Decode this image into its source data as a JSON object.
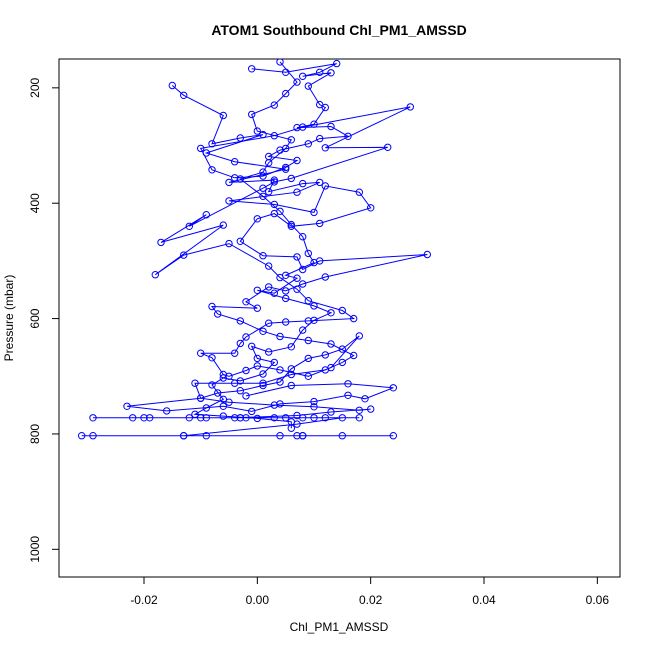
{
  "chart_data": {
    "type": "line",
    "title": "ATOM1 Southbound Chl_PM1_AMSSD",
    "xlabel": "Chl_PM1_AMSSD",
    "ylabel": "Pressure (mbar)",
    "xlim": [
      -0.035,
      0.064
    ],
    "ylim": [
      1048,
      150
    ],
    "y_inverted": true,
    "x_ticks": [
      -0.02,
      0.0,
      0.02,
      0.04,
      0.06
    ],
    "x_tick_labels": [
      "-0.02",
      "0.00",
      "0.02",
      "0.04",
      "0.06"
    ],
    "y_ticks": [
      200,
      400,
      600,
      800,
      1000
    ],
    "y_tick_labels": [
      "200",
      "400",
      "600",
      "800",
      "1000"
    ],
    "grid": false,
    "line_color": "#0000ff",
    "marker": "open-circle",
    "series": [
      {
        "points": [
          [
            -0.015,
            196
          ],
          [
            -0.013,
            213
          ],
          [
            -0.006,
            248
          ],
          [
            -0.008,
            297
          ],
          [
            -0.003,
            287
          ],
          [
            0.001,
            281
          ],
          [
            -0.009,
            313
          ],
          [
            -0.004,
            328
          ],
          [
            0.005,
            341
          ],
          [
            -0.005,
            364
          ],
          [
            0.003,
            360
          ],
          [
            0.002,
            380
          ],
          [
            0.008,
            366
          ],
          [
            0.011,
            364
          ],
          [
            0.007,
            381
          ],
          [
            -0.005,
            396
          ],
          [
            0.003,
            402
          ],
          [
            0.01,
            416
          ],
          [
            0.012,
            370
          ],
          [
            0.018,
            381
          ],
          [
            0.02,
            408
          ],
          [
            0.011,
            435
          ],
          [
            0.006,
            440
          ],
          [
            0.003,
            418
          ],
          [
            0.0,
            427
          ],
          [
            -0.003,
            466
          ],
          [
            0.001,
            491
          ],
          [
            0.007,
            493
          ],
          [
            0.008,
            515
          ],
          [
            0.011,
            500
          ],
          [
            0.03,
            489
          ],
          [
            0.012,
            528
          ],
          [
            0.008,
            540
          ],
          [
            0.005,
            552
          ],
          [
            0.002,
            545
          ],
          [
            -0.002,
            571
          ],
          [
            0.0,
            582
          ],
          [
            -0.008,
            579
          ],
          [
            -0.007,
            592
          ],
          [
            -0.003,
            604
          ],
          [
            0.001,
            622
          ],
          [
            0.004,
            631
          ],
          [
            0.009,
            638
          ],
          [
            0.013,
            644
          ],
          [
            0.017,
            664
          ],
          [
            0.015,
            676
          ],
          [
            0.012,
            689
          ],
          [
            0.006,
            697
          ],
          [
            0.001,
            712
          ],
          [
            -0.004,
            712
          ],
          [
            -0.011,
            712
          ],
          [
            -0.01,
            738
          ],
          [
            -0.005,
            745
          ],
          [
            0.003,
            750
          ],
          [
            0.01,
            753
          ],
          [
            0.018,
            759
          ],
          [
            0.02,
            757
          ],
          [
            0.013,
            762
          ],
          [
            0.007,
            768
          ],
          [
            -0.004,
            772
          ],
          [
            -0.012,
            772
          ],
          [
            -0.019,
            772
          ],
          [
            -0.022,
            772
          ],
          [
            -0.029,
            772
          ],
          [
            -0.02,
            772
          ],
          [
            -0.01,
            772
          ],
          [
            -0.003,
            772
          ],
          [
            0.005,
            772
          ],
          [
            0.012,
            772
          ],
          [
            0.018,
            772
          ],
          [
            0.01,
            772
          ],
          [
            0.003,
            772
          ],
          [
            -0.003,
            772
          ],
          [
            -0.009,
            772
          ],
          [
            -0.002,
            772
          ],
          [
            0.008,
            772
          ],
          [
            0.015,
            772
          ],
          [
            0.007,
            783
          ],
          [
            -0.013,
            803
          ],
          [
            -0.031,
            803
          ],
          [
            -0.029,
            803
          ],
          [
            -0.013,
            803
          ],
          [
            -0.009,
            803
          ],
          [
            0.004,
            803
          ],
          [
            0.008,
            803
          ],
          [
            0.007,
            803
          ],
          [
            0.008,
            803
          ],
          [
            0.015,
            803
          ],
          [
            0.024,
            803
          ]
        ]
      },
      {
        "points": [
          [
            -0.001,
            167
          ],
          [
            0.005,
            173
          ],
          [
            0.014,
            158
          ],
          [
            0.011,
            173
          ],
          [
            0.008,
            180
          ],
          [
            0.013,
            174
          ],
          [
            0.009,
            197
          ],
          [
            0.011,
            229
          ],
          [
            0.012,
            234
          ],
          [
            0.01,
            263
          ],
          [
            0.007,
            269
          ],
          [
            0.013,
            267
          ],
          [
            0.016,
            284
          ],
          [
            0.011,
            288
          ],
          [
            0.009,
            297
          ],
          [
            0.004,
            308
          ],
          [
            0.002,
            319
          ],
          [
            0.007,
            326
          ],
          [
            0.005,
            338
          ],
          [
            0.001,
            353
          ],
          [
            -0.004,
            356
          ],
          [
            -0.008,
            342
          ],
          [
            -0.01,
            305
          ],
          [
            0.003,
            283
          ],
          [
            0.008,
            268
          ],
          [
            0.027,
            233
          ],
          [
            0.012,
            304
          ],
          [
            0.023,
            303
          ],
          [
            0.006,
            357
          ],
          [
            0.003,
            363
          ],
          [
            0.001,
            374
          ],
          [
            -0.012,
            440
          ],
          [
            -0.009,
            420
          ],
          [
            -0.017,
            468
          ],
          [
            -0.006,
            438
          ],
          [
            -0.018,
            524
          ],
          [
            -0.013,
            490
          ],
          [
            -0.005,
            470
          ],
          [
            0.002,
            509
          ],
          [
            0.004,
            529
          ],
          [
            0.007,
            549
          ],
          [
            0.009,
            569
          ],
          [
            0.015,
            586
          ],
          [
            0.017,
            600
          ],
          [
            0.009,
            604
          ],
          [
            0.005,
            606
          ],
          [
            0.002,
            608
          ],
          [
            -0.002,
            632
          ],
          [
            -0.003,
            643
          ],
          [
            -0.004,
            660
          ],
          [
            -0.01,
            660
          ],
          [
            -0.008,
            668
          ],
          [
            -0.006,
            697
          ],
          [
            -0.005,
            700
          ],
          [
            -0.002,
            690
          ],
          [
            0.0,
            682
          ],
          [
            0.004,
            689
          ],
          [
            0.009,
            700
          ],
          [
            0.013,
            685
          ],
          [
            0.018,
            630
          ],
          [
            0.015,
            653
          ],
          [
            0.012,
            663
          ],
          [
            0.009,
            669
          ],
          [
            0.006,
            687
          ],
          [
            0.004,
            710
          ],
          [
            0.001,
            716
          ],
          [
            -0.003,
            725
          ],
          [
            -0.007,
            729
          ],
          [
            -0.01,
            738
          ],
          [
            -0.023,
            752
          ],
          [
            -0.016,
            760
          ],
          [
            -0.006,
            752
          ],
          [
            -0.001,
            761
          ],
          [
            0.004,
            748
          ],
          [
            0.01,
            744
          ],
          [
            0.016,
            733
          ],
          [
            0.019,
            739
          ],
          [
            0.024,
            720
          ],
          [
            0.016,
            713
          ],
          [
            0.006,
            716
          ],
          [
            -0.002,
            734
          ]
        ]
      },
      {
        "points": [
          [
            0.004,
            155
          ],
          [
            0.007,
            190
          ],
          [
            0.005,
            210
          ],
          [
            0.003,
            230
          ],
          [
            -0.001,
            246
          ],
          [
            0.0,
            275
          ],
          [
            0.006,
            290
          ],
          [
            0.005,
            305
          ],
          [
            0.002,
            330
          ],
          [
            0.001,
            346
          ],
          [
            -0.003,
            358
          ],
          [
            0.001,
            388
          ],
          [
            0.004,
            414
          ],
          [
            0.006,
            437
          ],
          [
            0.008,
            458
          ],
          [
            0.009,
            487
          ],
          [
            0.01,
            503
          ],
          [
            0.005,
            525
          ],
          [
            0.007,
            530
          ],
          [
            0.003,
            556
          ],
          [
            0.0,
            551
          ],
          [
            0.005,
            565
          ],
          [
            0.01,
            578
          ],
          [
            0.013,
            590
          ],
          [
            0.01,
            603
          ],
          [
            0.008,
            620
          ],
          [
            0.006,
            649
          ],
          [
            0.002,
            658
          ],
          [
            -0.001,
            648
          ],
          [
            0.0,
            669
          ],
          [
            0.003,
            676
          ],
          [
            0.001,
            696
          ],
          [
            -0.003,
            708
          ],
          [
            -0.006,
            703
          ],
          [
            -0.008,
            715
          ],
          [
            -0.006,
            740
          ],
          [
            -0.009,
            755
          ],
          [
            -0.011,
            766
          ],
          [
            -0.006,
            769
          ],
          [
            0.0,
            773
          ],
          [
            0.006,
            779
          ],
          [
            0.006,
            790
          ]
        ]
      }
    ]
  }
}
